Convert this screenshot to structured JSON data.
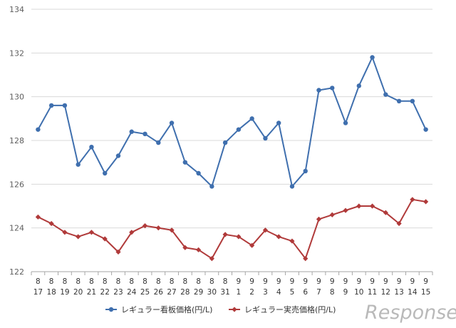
{
  "chart_data": {
    "type": "line",
    "categories": [
      [
        "8",
        "17"
      ],
      [
        "8",
        "18"
      ],
      [
        "8",
        "19"
      ],
      [
        "8",
        "20"
      ],
      [
        "8",
        "21"
      ],
      [
        "8",
        "22"
      ],
      [
        "8",
        "23"
      ],
      [
        "8",
        "24"
      ],
      [
        "8",
        "25"
      ],
      [
        "8",
        "26"
      ],
      [
        "8",
        "27"
      ],
      [
        "8",
        "28"
      ],
      [
        "8",
        "29"
      ],
      [
        "8",
        "30"
      ],
      [
        "8",
        "31"
      ],
      [
        "9",
        "1"
      ],
      [
        "9",
        "2"
      ],
      [
        "9",
        "3"
      ],
      [
        "9",
        "4"
      ],
      [
        "9",
        "5"
      ],
      [
        "9",
        "6"
      ],
      [
        "9",
        "7"
      ],
      [
        "9",
        "8"
      ],
      [
        "9",
        "9"
      ],
      [
        "9",
        "10"
      ],
      [
        "9",
        "11"
      ],
      [
        "9",
        "12"
      ],
      [
        "9",
        "13"
      ],
      [
        "9",
        "14"
      ],
      [
        "9",
        "15"
      ]
    ],
    "series": [
      {
        "name": "レギュラー看板価格(円/L)",
        "color": "#3f6fae",
        "marker": "circle",
        "values": [
          128.5,
          129.6,
          129.6,
          126.9,
          127.7,
          126.5,
          127.3,
          128.4,
          128.3,
          127.9,
          128.8,
          127.0,
          126.5,
          125.9,
          127.9,
          128.5,
          129.0,
          128.1,
          128.8,
          125.9,
          126.6,
          130.3,
          130.4,
          128.8,
          130.5,
          131.8,
          130.1,
          129.8,
          129.8,
          128.5
        ]
      },
      {
        "name": "レギュラー実売価格(円/L)",
        "color": "#b03a3a",
        "marker": "diamond",
        "values": [
          124.5,
          124.2,
          123.8,
          123.6,
          123.8,
          123.5,
          122.9,
          123.8,
          124.1,
          124.0,
          123.9,
          123.1,
          123.0,
          122.6,
          123.7,
          123.6,
          123.2,
          123.9,
          123.6,
          123.4,
          122.6,
          124.4,
          124.6,
          124.8,
          125.0,
          125.0,
          124.7,
          124.2,
          125.3,
          125.2
        ]
      }
    ],
    "yticks": [
      "122",
      "124",
      "126",
      "128",
      "130",
      "132",
      "134"
    ],
    "ylim": [
      122,
      134
    ],
    "grid": true,
    "legend_position": "bottom-center",
    "watermark": "Response."
  }
}
